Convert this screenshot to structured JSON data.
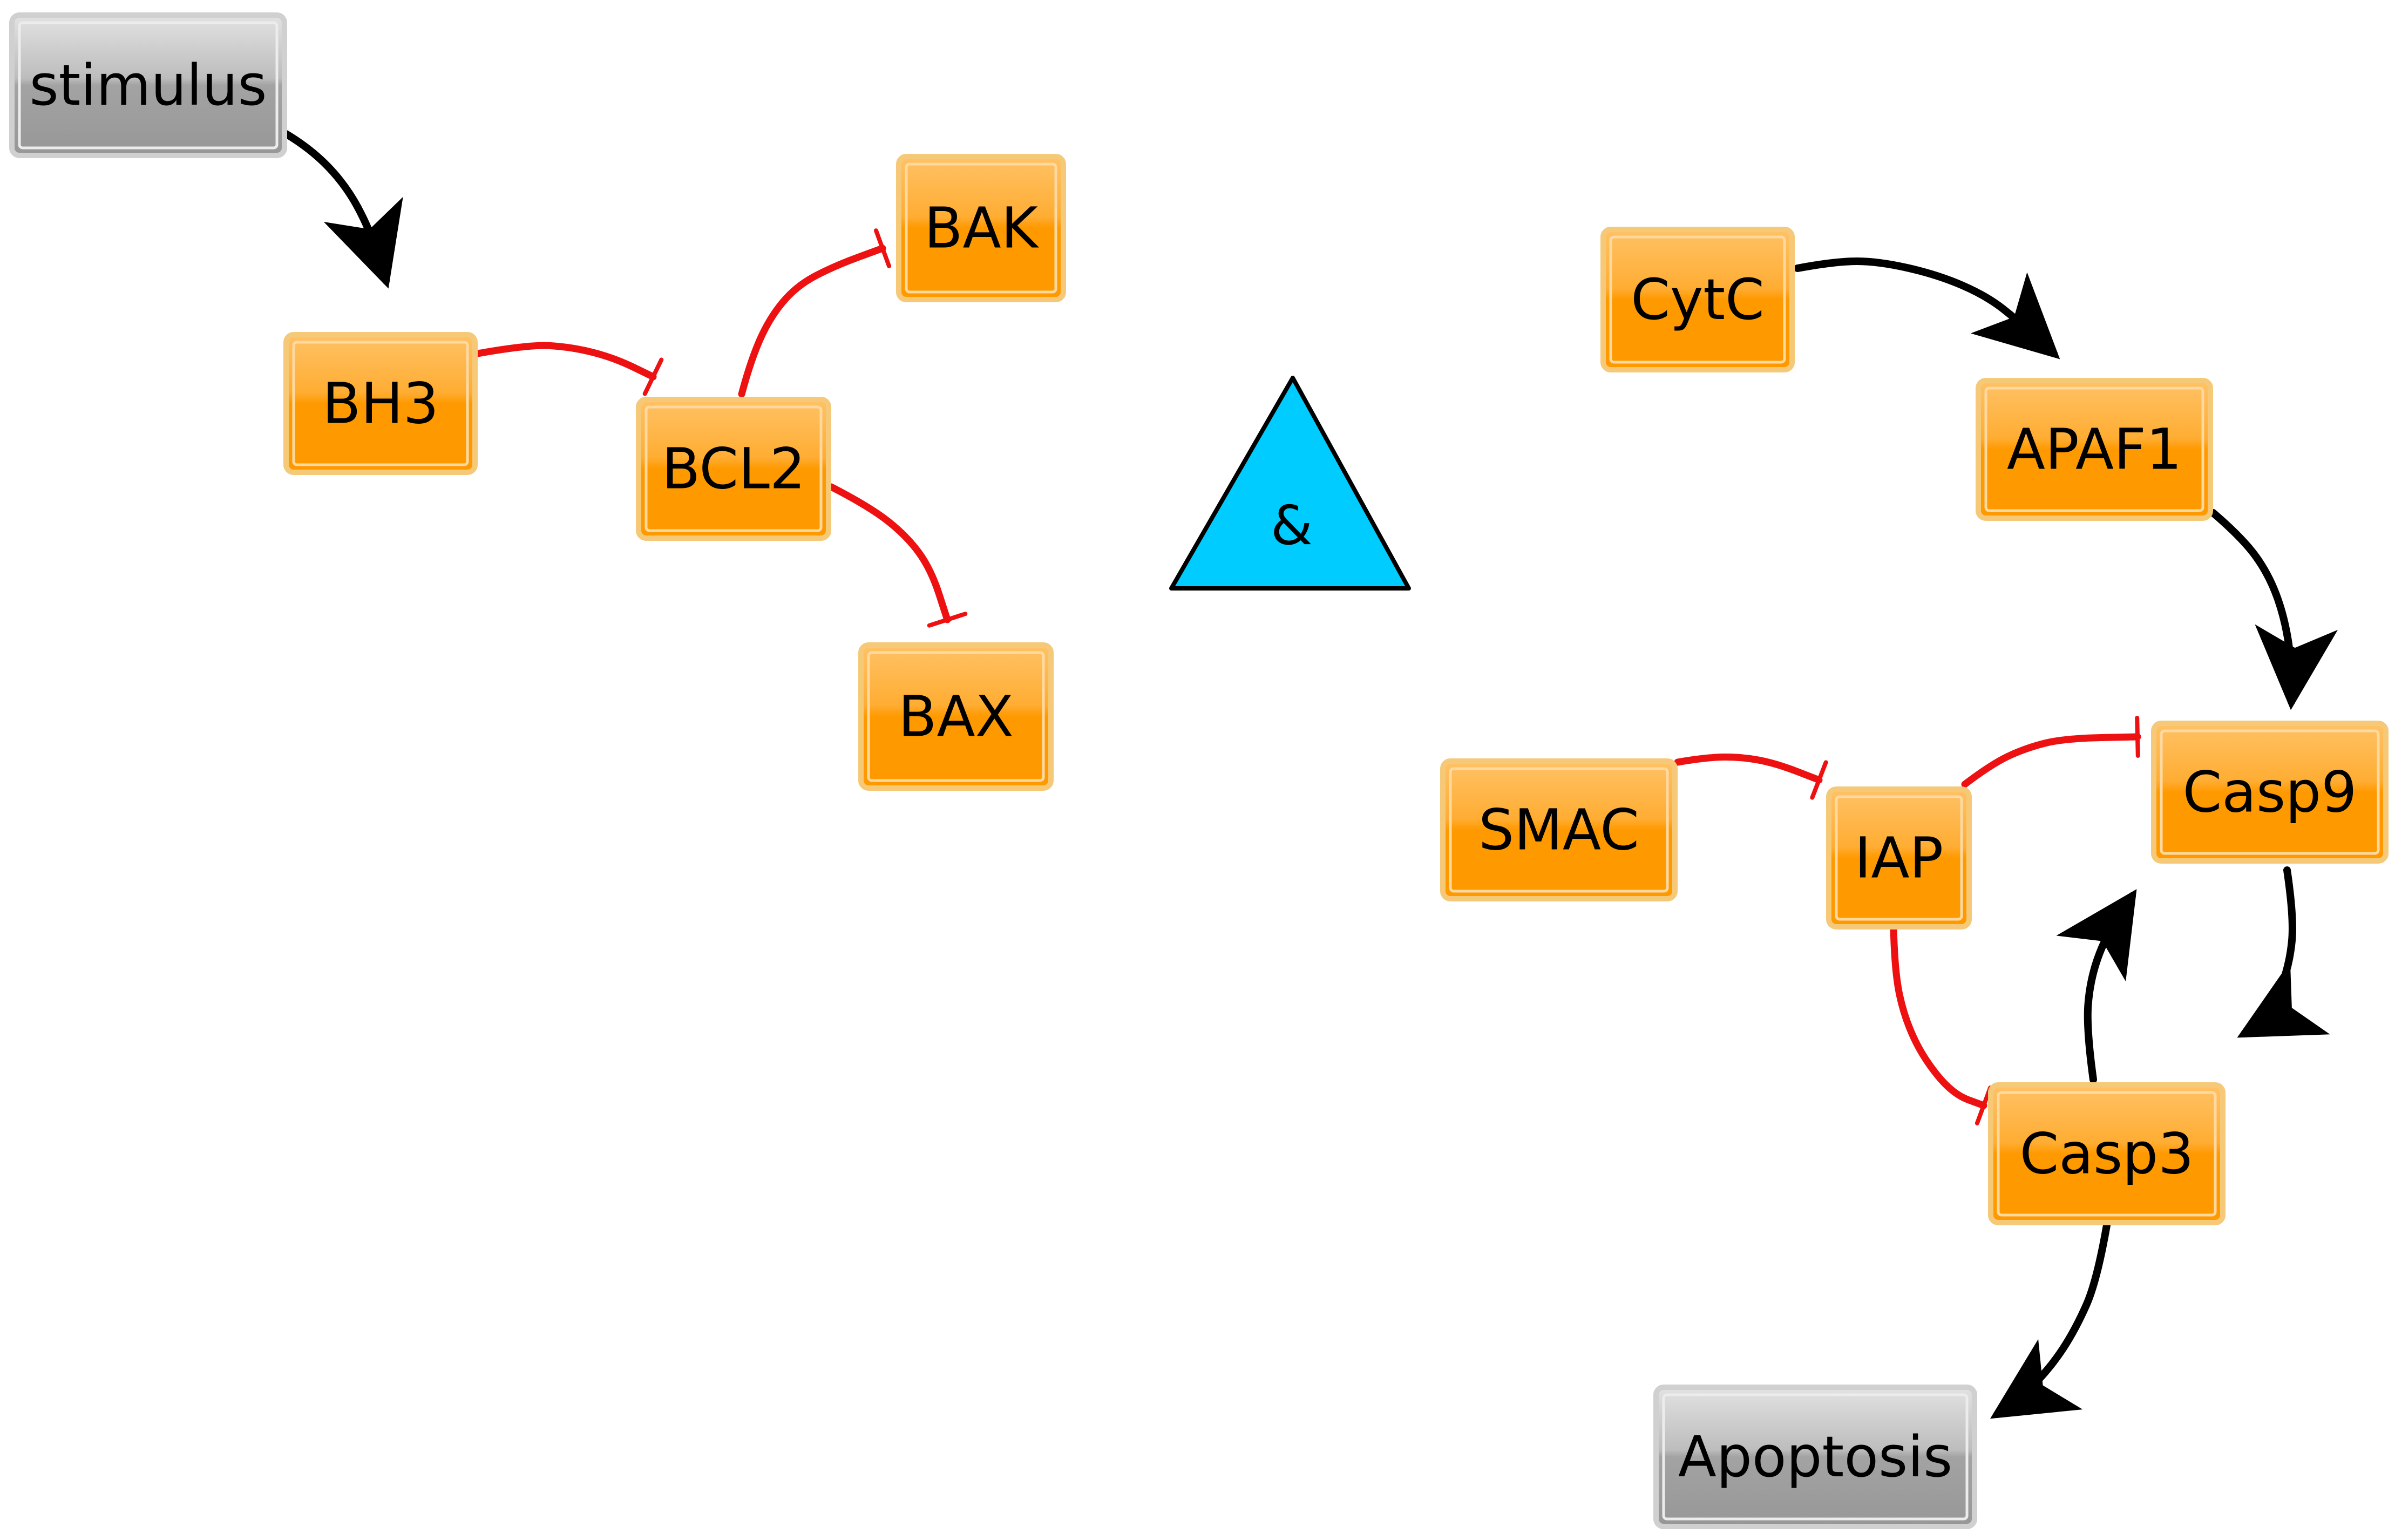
{
  "colors": {
    "activation": "#000000",
    "inhibition": "#ee1111",
    "protein_fill": "#ff9900",
    "protein_border": "#f5c978",
    "io_fill": "#a0a0a0",
    "io_border": "#d0d0d0",
    "gate_fill": "#00ccff"
  },
  "nodes": {
    "stimulus": {
      "label": "stimulus",
      "kind": "input"
    },
    "bh3": {
      "label": "BH3",
      "kind": "protein"
    },
    "bcl2": {
      "label": "BCL2",
      "kind": "protein"
    },
    "bak": {
      "label": "BAK",
      "kind": "protein"
    },
    "bax": {
      "label": "BAX",
      "kind": "protein"
    },
    "and_gate": {
      "label": "&",
      "kind": "and-gate"
    },
    "cytc": {
      "label": "CytC",
      "kind": "protein"
    },
    "apaf1": {
      "label": "APAF1",
      "kind": "protein"
    },
    "smac": {
      "label": "SMAC",
      "kind": "protein"
    },
    "iap": {
      "label": "IAP",
      "kind": "protein"
    },
    "casp9": {
      "label": "Casp9",
      "kind": "protein"
    },
    "casp3": {
      "label": "Casp3",
      "kind": "protein"
    },
    "apoptosis": {
      "label": "Apoptosis",
      "kind": "output"
    }
  },
  "edges": [
    {
      "from": "stimulus",
      "to": "bh3",
      "type": "activation"
    },
    {
      "from": "bh3",
      "to": "bcl2",
      "type": "inhibition"
    },
    {
      "from": "bcl2",
      "to": "bak",
      "type": "inhibition"
    },
    {
      "from": "bcl2",
      "to": "bax",
      "type": "inhibition"
    },
    {
      "from": "bak",
      "to": "and_gate",
      "type": "activation"
    },
    {
      "from": "bax",
      "to": "and_gate",
      "type": "activation"
    },
    {
      "from": "and_gate",
      "to": "cytc",
      "type": "activation"
    },
    {
      "from": "and_gate",
      "to": "smac",
      "type": "activation"
    },
    {
      "from": "cytc",
      "to": "apaf1",
      "type": "activation"
    },
    {
      "from": "apaf1",
      "to": "casp9",
      "type": "activation"
    },
    {
      "from": "smac",
      "to": "iap",
      "type": "inhibition"
    },
    {
      "from": "iap",
      "to": "casp9",
      "type": "inhibition"
    },
    {
      "from": "iap",
      "to": "casp3",
      "type": "inhibition"
    },
    {
      "from": "casp9",
      "to": "casp3",
      "type": "activation"
    },
    {
      "from": "casp3",
      "to": "casp9",
      "type": "activation"
    },
    {
      "from": "casp3",
      "to": "apoptosis",
      "type": "activation"
    }
  ]
}
